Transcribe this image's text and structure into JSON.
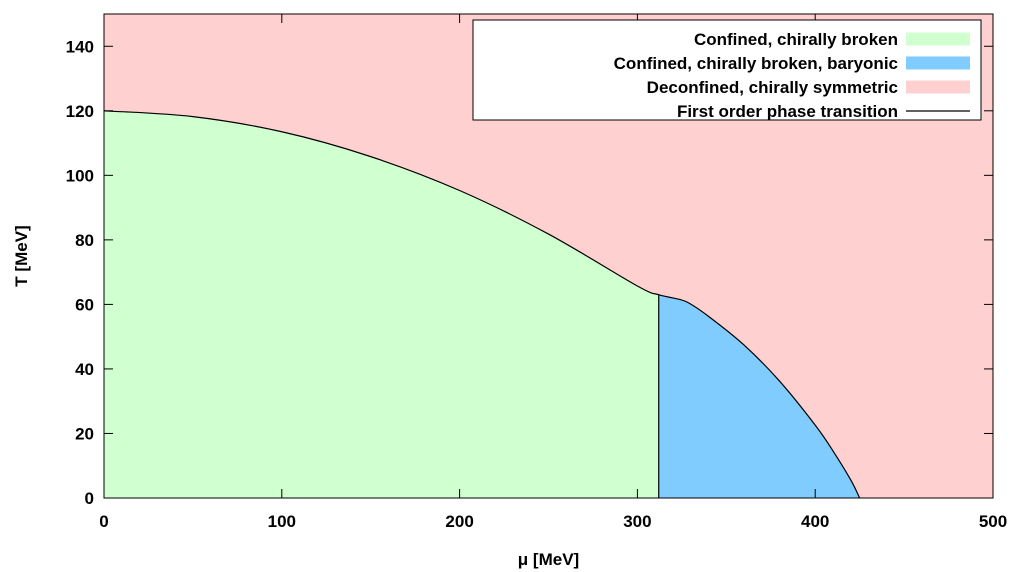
{
  "chart_data": {
    "type": "area",
    "xlabel": "μ [MeV]",
    "ylabel": "T [MeV]",
    "xlim": [
      0,
      500
    ],
    "ylim": [
      0,
      150
    ],
    "x_ticks": [
      "0",
      "100",
      "200",
      "300",
      "400",
      "500"
    ],
    "y_ticks": [
      "0",
      "20",
      "40",
      "60",
      "80",
      "100",
      "120",
      "140"
    ],
    "grid": false,
    "legend_position": "top-right",
    "regions": [
      {
        "name": "Confined, chirally broken",
        "color": "#d0ffd0"
      },
      {
        "name": "Confined, chirally broken, baryonic",
        "color": "#80ccff"
      },
      {
        "name": "Deconfined, chirally symmetric",
        "color": "#ffd0d0"
      }
    ],
    "transition_line": {
      "name": "First order phase transition",
      "color": "#000000",
      "boundary": {
        "x": [
          0,
          50,
          100,
          150,
          200,
          250,
          300,
          312,
          320,
          328,
          340,
          360,
          380,
          400,
          410,
          420,
          425
        ],
        "y": [
          120,
          118.2,
          113.5,
          105.8,
          95.3,
          81.8,
          65.7,
          63,
          62,
          60.7,
          56.3,
          47.4,
          36.2,
          22.6,
          14.6,
          5.6,
          0
        ]
      },
      "vertical": {
        "x": [
          312,
          312
        ],
        "y": [
          0,
          63
        ]
      }
    }
  }
}
